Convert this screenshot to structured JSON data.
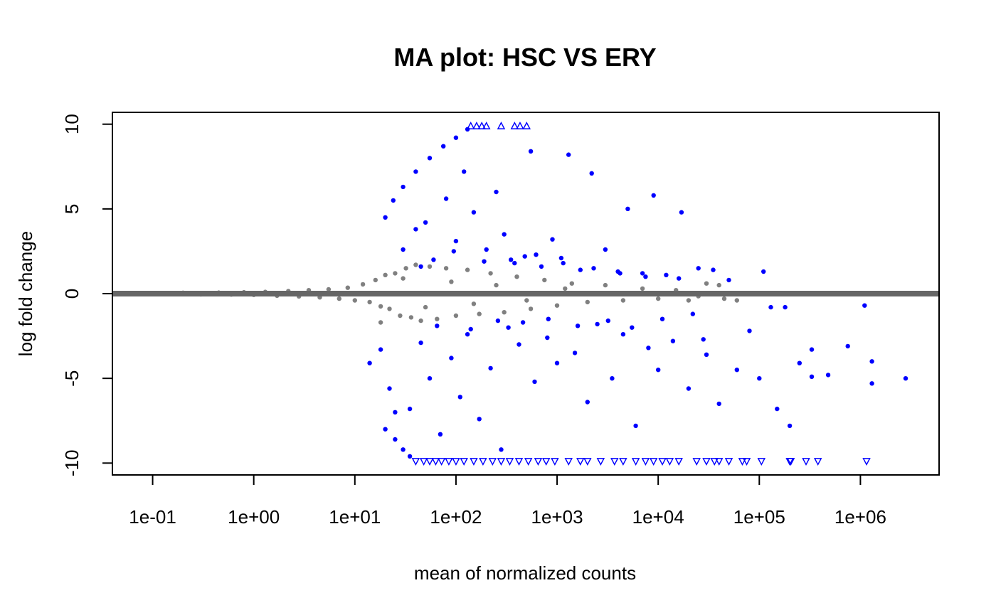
{
  "chart_data": {
    "type": "scatter",
    "title": "MA plot: HSC VS ERY",
    "xlabel": "mean of normalized counts",
    "ylabel": "log fold change",
    "x_scale": "log10",
    "xlim": [
      0.04,
      6000000
    ],
    "ylim": [
      -10.7,
      10.7
    ],
    "x_ticks": [
      0.1,
      1,
      10,
      100,
      1000,
      10000,
      100000,
      1000000
    ],
    "x_tick_labels": [
      "1e-01",
      "1e+00",
      "1e+01",
      "1e+02",
      "1e+03",
      "1e+04",
      "1e+05",
      "1e+06"
    ],
    "y_ticks": [
      -10,
      -5,
      0,
      5,
      10
    ],
    "y_tick_labels": [
      "-10",
      "-5",
      "0",
      "5",
      "10"
    ],
    "reference_line": {
      "y": 0,
      "color": "#666666"
    },
    "colors": {
      "significant": "#0000ff",
      "not_significant": "#808080"
    },
    "series": [
      {
        "name": "",
        "marker": "circle",
        "color": "#808080",
        "points": [
          [
            0.08,
            0.03
          ],
          [
            0.12,
            -0.02
          ],
          [
            0.2,
            0.05
          ],
          [
            0.3,
            -0.04
          ],
          [
            0.45,
            0.06
          ],
          [
            0.6,
            -0.05
          ],
          [
            0.8,
            0.08
          ],
          [
            1.0,
            -0.07
          ],
          [
            1.3,
            0.1
          ],
          [
            1.7,
            -0.12
          ],
          [
            2.2,
            0.15
          ],
          [
            2.8,
            -0.16
          ],
          [
            3.5,
            0.2
          ],
          [
            4.5,
            -0.22
          ],
          [
            5.5,
            0.25
          ],
          [
            7.0,
            -0.3
          ],
          [
            8.5,
            0.35
          ],
          [
            10,
            -0.4
          ],
          [
            12,
            0.55
          ],
          [
            14,
            -0.5
          ],
          [
            16,
            0.8
          ],
          [
            18,
            -0.75
          ],
          [
            20,
            1.1
          ],
          [
            22,
            -0.9
          ],
          [
            25,
            1.2
          ],
          [
            28,
            -1.3
          ],
          [
            32,
            1.5
          ],
          [
            36,
            -1.4
          ],
          [
            40,
            1.7
          ],
          [
            45,
            -1.6
          ],
          [
            55,
            1.6
          ],
          [
            65,
            -1.5
          ],
          [
            80,
            1.5
          ],
          [
            100,
            -1.3
          ],
          [
            130,
            1.4
          ],
          [
            170,
            -1.2
          ],
          [
            220,
            1.2
          ],
          [
            300,
            -1.1
          ],
          [
            400,
            1.0
          ],
          [
            550,
            -0.9
          ],
          [
            750,
            0.8
          ],
          [
            1000,
            -0.7
          ],
          [
            1400,
            0.6
          ],
          [
            2000,
            -0.5
          ],
          [
            3000,
            0.5
          ],
          [
            4500,
            -0.4
          ],
          [
            7000,
            0.3
          ],
          [
            10000,
            -0.3
          ],
          [
            15000,
            0.2
          ],
          [
            25000,
            -0.15
          ],
          [
            40000,
            0.5
          ],
          [
            60000,
            -0.4
          ],
          [
            18,
            -1.7
          ],
          [
            30,
            0.9
          ],
          [
            50,
            -0.8
          ],
          [
            90,
            0.7
          ],
          [
            150,
            -0.6
          ],
          [
            250,
            0.5
          ],
          [
            500,
            -0.4
          ],
          [
            1200,
            0.3
          ],
          [
            20000,
            -0.4
          ],
          [
            30000,
            0.6
          ],
          [
            45000,
            -0.3
          ]
        ]
      },
      {
        "name": "",
        "marker": "circle",
        "color": "#0000ff",
        "points": [
          [
            20,
            4.5
          ],
          [
            24,
            5.5
          ],
          [
            30,
            6.3
          ],
          [
            40,
            7.2
          ],
          [
            55,
            8.0
          ],
          [
            75,
            8.7
          ],
          [
            100,
            9.2
          ],
          [
            130,
            9.7
          ],
          [
            20,
            -8.0
          ],
          [
            25,
            -8.6
          ],
          [
            30,
            -9.2
          ],
          [
            35,
            -9.6
          ],
          [
            14,
            -4.1
          ],
          [
            18,
            -3.3
          ],
          [
            22,
            -5.6
          ],
          [
            25,
            -7.0
          ],
          [
            30,
            2.6
          ],
          [
            35,
            -6.8
          ],
          [
            40,
            3.8
          ],
          [
            45,
            -2.9
          ],
          [
            50,
            4.2
          ],
          [
            55,
            -5.0
          ],
          [
            60,
            2.0
          ],
          [
            70,
            -8.3
          ],
          [
            80,
            5.6
          ],
          [
            90,
            -3.8
          ],
          [
            100,
            3.1
          ],
          [
            110,
            -6.1
          ],
          [
            120,
            7.2
          ],
          [
            130,
            -2.4
          ],
          [
            150,
            4.8
          ],
          [
            170,
            -7.4
          ],
          [
            200,
            2.6
          ],
          [
            220,
            -4.4
          ],
          [
            250,
            6.0
          ],
          [
            280,
            -9.2
          ],
          [
            300,
            3.5
          ],
          [
            330,
            -2.0
          ],
          [
            380,
            1.8
          ],
          [
            420,
            -3.0
          ],
          [
            480,
            2.2
          ],
          [
            550,
            8.4
          ],
          [
            600,
            -5.2
          ],
          [
            700,
            1.6
          ],
          [
            800,
            -2.6
          ],
          [
            900,
            3.2
          ],
          [
            1000,
            -4.1
          ],
          [
            1100,
            2.1
          ],
          [
            1300,
            8.2
          ],
          [
            1500,
            -3.5
          ],
          [
            1700,
            1.4
          ],
          [
            2000,
            -6.4
          ],
          [
            2200,
            7.1
          ],
          [
            2500,
            -1.8
          ],
          [
            3000,
            2.6
          ],
          [
            3500,
            -5.0
          ],
          [
            4000,
            1.3
          ],
          [
            4500,
            -2.4
          ],
          [
            5000,
            5.0
          ],
          [
            6000,
            -7.8
          ],
          [
            7000,
            1.2
          ],
          [
            8000,
            -3.2
          ],
          [
            9000,
            5.8
          ],
          [
            10000,
            -4.5
          ],
          [
            12000,
            1.1
          ],
          [
            14000,
            -2.8
          ],
          [
            17000,
            4.8
          ],
          [
            20000,
            -5.6
          ],
          [
            25000,
            1.5
          ],
          [
            30000,
            -3.6
          ],
          [
            35000,
            1.4
          ],
          [
            40000,
            -6.5
          ],
          [
            50000,
            0.8
          ],
          [
            60000,
            -4.5
          ],
          [
            80000,
            -2.2
          ],
          [
            100000,
            -5.0
          ],
          [
            110000,
            1.3
          ],
          [
            130000,
            -0.8
          ],
          [
            150000,
            -6.8
          ],
          [
            180000,
            -0.8
          ],
          [
            200000,
            -7.8
          ],
          [
            250000,
            -4.1
          ],
          [
            330000,
            -3.3
          ],
          [
            330000,
            -4.9
          ],
          [
            480000,
            -4.8
          ],
          [
            750000,
            -3.1
          ],
          [
            1100000,
            -0.7
          ],
          [
            1300000,
            -4.0
          ],
          [
            1300000,
            -5.3
          ],
          [
            2800000,
            -5.0
          ],
          [
            45,
            1.6
          ],
          [
            65,
            -1.9
          ],
          [
            95,
            2.5
          ],
          [
            140,
            -2.1
          ],
          [
            190,
            1.9
          ],
          [
            260,
            -1.6
          ],
          [
            350,
            2.0
          ],
          [
            460,
            -1.7
          ],
          [
            620,
            2.3
          ],
          [
            820,
            -1.5
          ],
          [
            1150,
            1.8
          ],
          [
            1600,
            -1.9
          ],
          [
            2300,
            1.5
          ],
          [
            3200,
            -1.6
          ],
          [
            4200,
            1.2
          ],
          [
            5500,
            -2.0
          ],
          [
            7500,
            1.0
          ],
          [
            11000,
            -1.5
          ],
          [
            16000,
            0.9
          ],
          [
            22000,
            -1.2
          ],
          [
            28000,
            -2.7
          ]
        ]
      },
      {
        "name": "",
        "marker": "triangle-up",
        "color": "#0000ff",
        "points": [
          [
            140,
            9.9
          ],
          [
            160,
            9.9
          ],
          [
            180,
            9.9
          ],
          [
            200,
            9.9
          ],
          [
            280,
            9.9
          ],
          [
            380,
            9.9
          ],
          [
            430,
            9.9
          ],
          [
            500,
            9.9
          ]
        ]
      },
      {
        "name": "",
        "marker": "triangle-down",
        "color": "#0000ff",
        "points": [
          [
            40,
            -9.9
          ],
          [
            48,
            -9.9
          ],
          [
            55,
            -9.9
          ],
          [
            63,
            -9.9
          ],
          [
            72,
            -9.9
          ],
          [
            85,
            -9.9
          ],
          [
            100,
            -9.9
          ],
          [
            120,
            -9.9
          ],
          [
            150,
            -9.9
          ],
          [
            185,
            -9.9
          ],
          [
            230,
            -9.9
          ],
          [
            280,
            -9.9
          ],
          [
            340,
            -9.9
          ],
          [
            420,
            -9.9
          ],
          [
            520,
            -9.9
          ],
          [
            650,
            -9.9
          ],
          [
            780,
            -9.9
          ],
          [
            950,
            -9.9
          ],
          [
            1300,
            -9.9
          ],
          [
            1700,
            -9.9
          ],
          [
            2000,
            -9.9
          ],
          [
            2700,
            -9.9
          ],
          [
            3700,
            -9.9
          ],
          [
            4500,
            -9.9
          ],
          [
            6000,
            -9.9
          ],
          [
            7500,
            -9.9
          ],
          [
            9000,
            -9.9
          ],
          [
            11000,
            -9.9
          ],
          [
            13000,
            -9.9
          ],
          [
            16000,
            -9.9
          ],
          [
            24000,
            -9.9
          ],
          [
            30000,
            -9.9
          ],
          [
            36000,
            -9.9
          ],
          [
            40000,
            -9.9
          ],
          [
            50000,
            -9.9
          ],
          [
            68000,
            -9.9
          ],
          [
            75000,
            -9.9
          ],
          [
            105000,
            -9.9
          ],
          [
            200000,
            -9.9
          ],
          [
            205000,
            -9.9
          ],
          [
            290000,
            -9.9
          ],
          [
            380000,
            -9.9
          ],
          [
            1150000,
            -9.9
          ]
        ]
      }
    ]
  }
}
